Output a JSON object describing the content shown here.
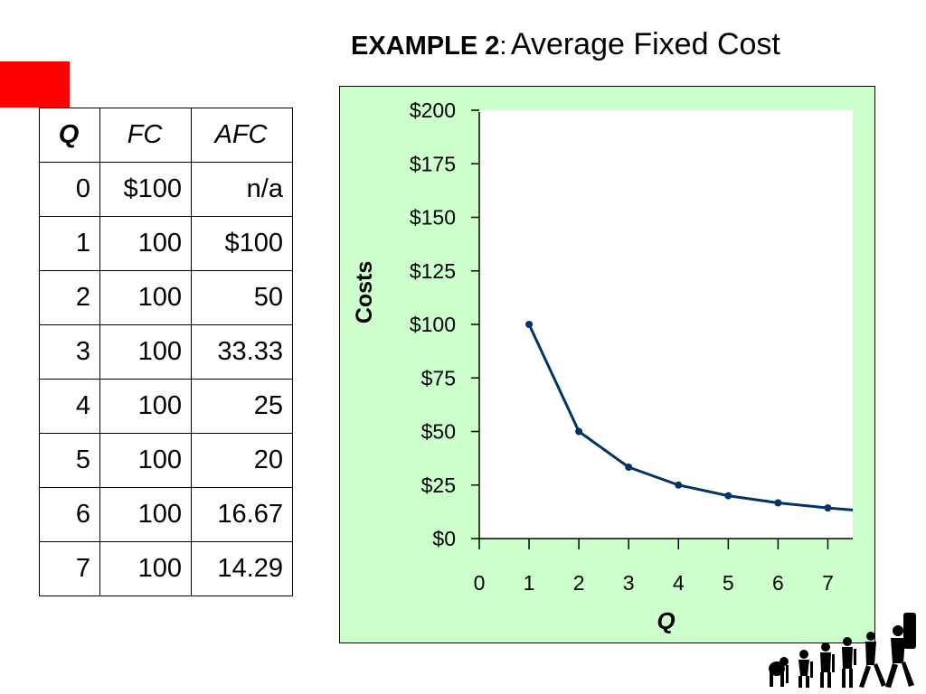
{
  "title": {
    "bold": "EXAMPLE 2",
    "colon": ":",
    "rest": "Average Fixed Cost"
  },
  "table": {
    "headers": [
      "Q",
      "FC",
      "AFC"
    ],
    "rows": [
      [
        "0",
        "$100",
        "n/a"
      ],
      [
        "1",
        "100",
        "$100"
      ],
      [
        "2",
        "100",
        "50"
      ],
      [
        "3",
        "100",
        "33.33"
      ],
      [
        "4",
        "100",
        "25"
      ],
      [
        "5",
        "100",
        "20"
      ],
      [
        "6",
        "100",
        "16.67"
      ],
      [
        "7",
        "100",
        "14.29"
      ]
    ]
  },
  "chart_data": {
    "type": "line",
    "title": "",
    "xlabel": "Q",
    "ylabel": "Costs",
    "x": [
      1,
      2,
      3,
      4,
      5,
      6,
      7
    ],
    "series": [
      {
        "values": [
          100,
          50,
          33.33,
          25,
          20,
          16.67,
          14.29
        ]
      }
    ],
    "extension": {
      "x": 7.5,
      "y": 13.33
    },
    "xlim": [
      0,
      7.5
    ],
    "ylim": [
      0,
      200
    ],
    "x_ticks": [
      0,
      1,
      2,
      3,
      4,
      5,
      6,
      7
    ],
    "x_tick_labels": [
      "0",
      "1",
      "2",
      "3",
      "4",
      "5",
      "6",
      "7"
    ],
    "y_ticks": [
      0,
      25,
      50,
      75,
      100,
      125,
      150,
      175,
      200
    ],
    "y_tick_labels": [
      "$0",
      "$25",
      "$50",
      "$75",
      "$100",
      "$125",
      "$150",
      "$175",
      "$200"
    ],
    "grid": false,
    "line_color": "#003366",
    "panel_color": "#ccffcc",
    "plot_color": "#ffffff"
  },
  "colors": {
    "accent_block": "#ff0000"
  },
  "logo": {
    "icon": "human-evolution-icon"
  }
}
